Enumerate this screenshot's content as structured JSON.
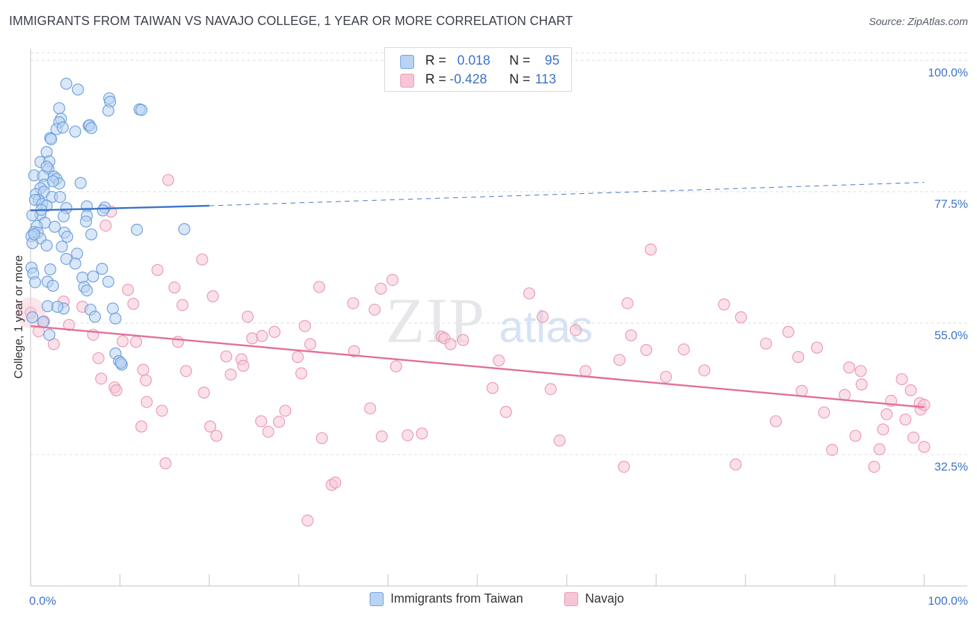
{
  "title": "IMMIGRANTS FROM TAIWAN VS NAVAJO COLLEGE, 1 YEAR OR MORE CORRELATION CHART",
  "source": "Source: ZipAtlas.com",
  "watermark": {
    "zip": "ZIP",
    "atlas": "atlas"
  },
  "legend": {
    "rows": [
      {
        "r_label": "R =",
        "r_value": "0.018",
        "n_label": "N =",
        "n_value": "95"
      },
      {
        "r_label": "R =",
        "r_value": "-0.428",
        "n_label": "N =",
        "n_value": "113"
      }
    ]
  },
  "colors": {
    "blue": "#3b73c9",
    "blue_fill": "#b9d3f2",
    "blue_stroke": "#6c9fde",
    "pink": "#e26f9a",
    "pink_fill": "#f6c6d6",
    "pink_stroke": "#ec98b6",
    "grid": "#d9dce1",
    "tick_label": "#3b73c9"
  },
  "chart_data": {
    "type": "scatter",
    "title": "IMMIGRANTS FROM TAIWAN VS NAVAJO COLLEGE, 1 YEAR OR MORE CORRELATION CHART",
    "xlabel": "",
    "ylabel": "College, 1 year or more",
    "xlim": [
      0,
      100
    ],
    "ylim": [
      10,
      102
    ],
    "x_tick_labels": [
      "0.0%",
      "100.0%"
    ],
    "y_ticks": [
      100,
      77.5,
      55,
      32.5
    ],
    "y_tick_labels": [
      "100.0%",
      "77.5%",
      "55.0%",
      "32.5%"
    ],
    "series": [
      {
        "name": "Immigrants from Taiwan",
        "r": 0.018,
        "n": 95,
        "trend": {
          "x0": 0,
          "y0": 74.3,
          "x1": 20,
          "y1": 75.1,
          "dashed_to_x": 100,
          "dashed_to_y": 79.1
        },
        "points": [
          [
            4,
            96
          ],
          [
            5.3,
            95
          ],
          [
            8.8,
            93.5
          ],
          [
            8.9,
            92.9
          ],
          [
            12.2,
            91.6
          ],
          [
            12.4,
            91.5
          ],
          [
            3.2,
            91.8
          ],
          [
            8.7,
            91.4
          ],
          [
            3.4,
            90
          ],
          [
            3.2,
            89.4
          ],
          [
            2.9,
            88.2
          ],
          [
            3.6,
            88.5
          ],
          [
            6.5,
            88.8
          ],
          [
            6.6,
            88.9
          ],
          [
            5,
            87.8
          ],
          [
            6.8,
            88.4
          ],
          [
            2.2,
            86.7
          ],
          [
            2.3,
            86.5
          ],
          [
            1.8,
            84.3
          ],
          [
            1.1,
            82.6
          ],
          [
            2.1,
            82.7
          ],
          [
            2,
            81.4
          ],
          [
            1.8,
            81.8
          ],
          [
            0.4,
            80.3
          ],
          [
            1.4,
            80.2
          ],
          [
            2.6,
            80.1
          ],
          [
            2.9,
            79.7
          ],
          [
            3.2,
            78.9
          ],
          [
            1.5,
            78.7
          ],
          [
            2.5,
            79.3
          ],
          [
            5.6,
            79
          ],
          [
            1.1,
            78.1
          ],
          [
            0.6,
            77.1
          ],
          [
            1.5,
            77.5
          ],
          [
            0.9,
            76.1
          ],
          [
            2.4,
            76.6
          ],
          [
            3.3,
            76.6
          ],
          [
            0.5,
            76.1
          ],
          [
            1.3,
            75.4
          ],
          [
            1.8,
            75.1
          ],
          [
            6.3,
            75
          ],
          [
            4,
            74.7
          ],
          [
            8.3,
            74.8
          ],
          [
            8.1,
            74.3
          ],
          [
            1.1,
            73.6
          ],
          [
            0.2,
            73.5
          ],
          [
            3.7,
            73.3
          ],
          [
            6.3,
            73.4
          ],
          [
            1.6,
            72.2
          ],
          [
            0.7,
            71.6
          ],
          [
            2.7,
            71.5
          ],
          [
            0.4,
            70.6
          ],
          [
            0.8,
            70.5
          ],
          [
            3.8,
            70.5
          ],
          [
            6.8,
            70.2
          ],
          [
            1.1,
            69.5
          ],
          [
            0.1,
            69.9
          ],
          [
            4.1,
            69.8
          ],
          [
            11.9,
            71
          ],
          [
            17.2,
            71.1
          ],
          [
            0.2,
            68.7
          ],
          [
            1.8,
            68.3
          ],
          [
            3.5,
            68.1
          ],
          [
            5.2,
            66.9
          ],
          [
            4,
            66
          ],
          [
            5,
            65.2
          ],
          [
            2.2,
            64.2
          ],
          [
            0.1,
            64.5
          ],
          [
            0.3,
            63.5
          ],
          [
            1.9,
            62.1
          ],
          [
            5.8,
            62.8
          ],
          [
            0.5,
            62
          ],
          [
            8.7,
            62.1
          ],
          [
            6,
            61.2
          ],
          [
            6.3,
            60.6
          ],
          [
            1.9,
            57.9
          ],
          [
            3.7,
            57.5
          ],
          [
            6.7,
            57.3
          ],
          [
            9.2,
            57.5
          ],
          [
            7.2,
            56.1
          ],
          [
            9.5,
            55.8
          ],
          [
            0.2,
            56
          ],
          [
            2.1,
            53
          ],
          [
            9.5,
            49.8
          ],
          [
            9.9,
            48.5
          ],
          [
            10.2,
            47.9
          ],
          [
            10.1,
            48.2
          ],
          [
            1.4,
            55.2
          ],
          [
            2.5,
            61.4
          ],
          [
            3,
            57.8
          ],
          [
            7,
            63
          ],
          [
            8,
            64.3
          ],
          [
            0.4,
            70.2
          ],
          [
            6.2,
            72.4
          ],
          [
            1.2,
            74.4
          ]
        ]
      },
      {
        "name": "Navajo",
        "r": -0.428,
        "n": 113,
        "trend": {
          "x0": 0,
          "y0": 54.5,
          "x1": 100,
          "y1": 40.6
        },
        "points": [
          [
            0,
            56.8
          ],
          [
            0.9,
            53.6
          ],
          [
            1.5,
            55.3
          ],
          [
            2.6,
            51.4
          ],
          [
            3.7,
            58.7
          ],
          [
            4.3,
            54.7
          ],
          [
            5.8,
            57.8
          ],
          [
            7,
            53
          ],
          [
            7.6,
            49
          ],
          [
            7.9,
            45.5
          ],
          [
            8.4,
            71.7
          ],
          [
            9,
            74.1
          ],
          [
            9.4,
            44
          ],
          [
            9.6,
            43.5
          ],
          [
            10.3,
            51.9
          ],
          [
            10.9,
            60.7
          ],
          [
            11.5,
            58.3
          ],
          [
            11.8,
            51.8
          ],
          [
            12.4,
            37.3
          ],
          [
            12.9,
            45.2
          ],
          [
            13,
            41.5
          ],
          [
            12.6,
            47
          ],
          [
            14.2,
            64.1
          ],
          [
            14.7,
            40
          ],
          [
            15.1,
            31
          ],
          [
            15.4,
            79.5
          ],
          [
            16.1,
            61.1
          ],
          [
            16.5,
            51.8
          ],
          [
            17,
            58.1
          ],
          [
            17.4,
            46.8
          ],
          [
            19.2,
            65.9
          ],
          [
            19.4,
            43.1
          ],
          [
            20.1,
            37.3
          ],
          [
            20.4,
            59.6
          ],
          [
            20.8,
            35.7
          ],
          [
            21.9,
            49.3
          ],
          [
            22.4,
            46.2
          ],
          [
            23.6,
            48.8
          ],
          [
            23.8,
            47.7
          ],
          [
            24.3,
            56.1
          ],
          [
            24.8,
            52.4
          ],
          [
            25.8,
            38.2
          ],
          [
            25.9,
            52.8
          ],
          [
            26.6,
            36.4
          ],
          [
            27.3,
            53.5
          ],
          [
            27.8,
            38.1
          ],
          [
            28.5,
            40
          ],
          [
            29.9,
            49.2
          ],
          [
            30.3,
            46.4
          ],
          [
            30.7,
            54.5
          ],
          [
            31,
            21.2
          ],
          [
            31.3,
            51.4
          ],
          [
            32.3,
            61.2
          ],
          [
            32.6,
            35.3
          ],
          [
            33.7,
            27.3
          ],
          [
            34.1,
            27.7
          ],
          [
            36.1,
            58.4
          ],
          [
            36.2,
            50.2
          ],
          [
            38,
            40.4
          ],
          [
            38.5,
            57.3
          ],
          [
            39.2,
            60.9
          ],
          [
            39.3,
            35.6
          ],
          [
            40.5,
            62.4
          ],
          [
            40.9,
            47.6
          ],
          [
            42.2,
            35.8
          ],
          [
            43.8,
            36.1
          ],
          [
            46,
            52.7
          ],
          [
            46.3,
            52.4
          ],
          [
            47,
            51.4
          ],
          [
            48.4,
            52.1
          ],
          [
            51.7,
            43.9
          ],
          [
            52.4,
            48.6
          ],
          [
            53.2,
            39.8
          ],
          [
            55.8,
            60.1
          ],
          [
            57.3,
            56.1
          ],
          [
            58.2,
            43.7
          ],
          [
            59.2,
            34.9
          ],
          [
            61,
            53.8
          ],
          [
            62.1,
            46.8
          ],
          [
            65.9,
            48.7
          ],
          [
            66.4,
            30.4
          ],
          [
            66.8,
            58.4
          ],
          [
            67.2,
            52.9
          ],
          [
            68.9,
            50.4
          ],
          [
            69.4,
            67.6
          ],
          [
            71.1,
            45.8
          ],
          [
            73.1,
            50.5
          ],
          [
            75.4,
            46.9
          ],
          [
            77.6,
            58.2
          ],
          [
            78.9,
            30.8
          ],
          [
            79.5,
            56
          ],
          [
            82.3,
            51.5
          ],
          [
            83.4,
            38.2
          ],
          [
            84.8,
            53.5
          ],
          [
            85.9,
            49.2
          ],
          [
            86.3,
            43.4
          ],
          [
            88,
            50.8
          ],
          [
            88.8,
            39.7
          ],
          [
            89.7,
            33.3
          ],
          [
            91.1,
            42.7
          ],
          [
            91.6,
            47.4
          ],
          [
            92.3,
            35.7
          ],
          [
            92.9,
            46.8
          ],
          [
            93,
            44.5
          ],
          [
            94.4,
            30.4
          ],
          [
            95,
            33.4
          ],
          [
            95.4,
            36.8
          ],
          [
            95.8,
            39.4
          ],
          [
            96.3,
            41.7
          ],
          [
            97.5,
            45.4
          ],
          [
            97.9,
            38.5
          ],
          [
            98.5,
            43.5
          ],
          [
            98.8,
            35.4
          ],
          [
            99.5,
            41.3
          ],
          [
            100,
            33.8
          ],
          [
            99.6,
            40.2
          ],
          [
            100,
            41
          ]
        ]
      }
    ]
  },
  "bottom_legend": [
    {
      "label": "Immigrants from Taiwan"
    },
    {
      "label": "Navajo"
    }
  ],
  "x_axis_labels": {
    "left": "0.0%",
    "right": "100.0%"
  }
}
